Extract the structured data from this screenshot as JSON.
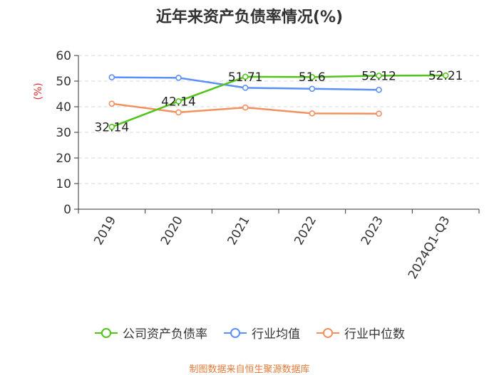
{
  "title": "近年来资产负债率情况(%)",
  "source": "制图数据来自恒生聚源数据库",
  "chart_data": {
    "type": "line",
    "categories": [
      "2019",
      "2020",
      "2021",
      "2022",
      "2023",
      "2024Q1-Q3"
    ],
    "ylabel": "(%)",
    "ylim": [
      0,
      60
    ],
    "yticks": [
      0,
      10,
      20,
      30,
      40,
      50,
      60
    ],
    "grid": true,
    "legend_position": "bottom",
    "series": [
      {
        "name": "公司资产负债率",
        "color": "#52c41a",
        "values": [
          32.14,
          42.14,
          51.71,
          51.6,
          52.12,
          52.21
        ],
        "labels": [
          "32.14",
          "42.14",
          "51.71",
          "51.6",
          "52.12",
          "52.21"
        ]
      },
      {
        "name": "行业均值",
        "color": "#5b8ff9",
        "values": [
          51.5,
          51.3,
          47.4,
          47.0,
          46.6,
          null
        ]
      },
      {
        "name": "行业中位数",
        "color": "#f4905f",
        "values": [
          41.2,
          37.8,
          39.7,
          37.4,
          37.3,
          null
        ]
      }
    ]
  }
}
